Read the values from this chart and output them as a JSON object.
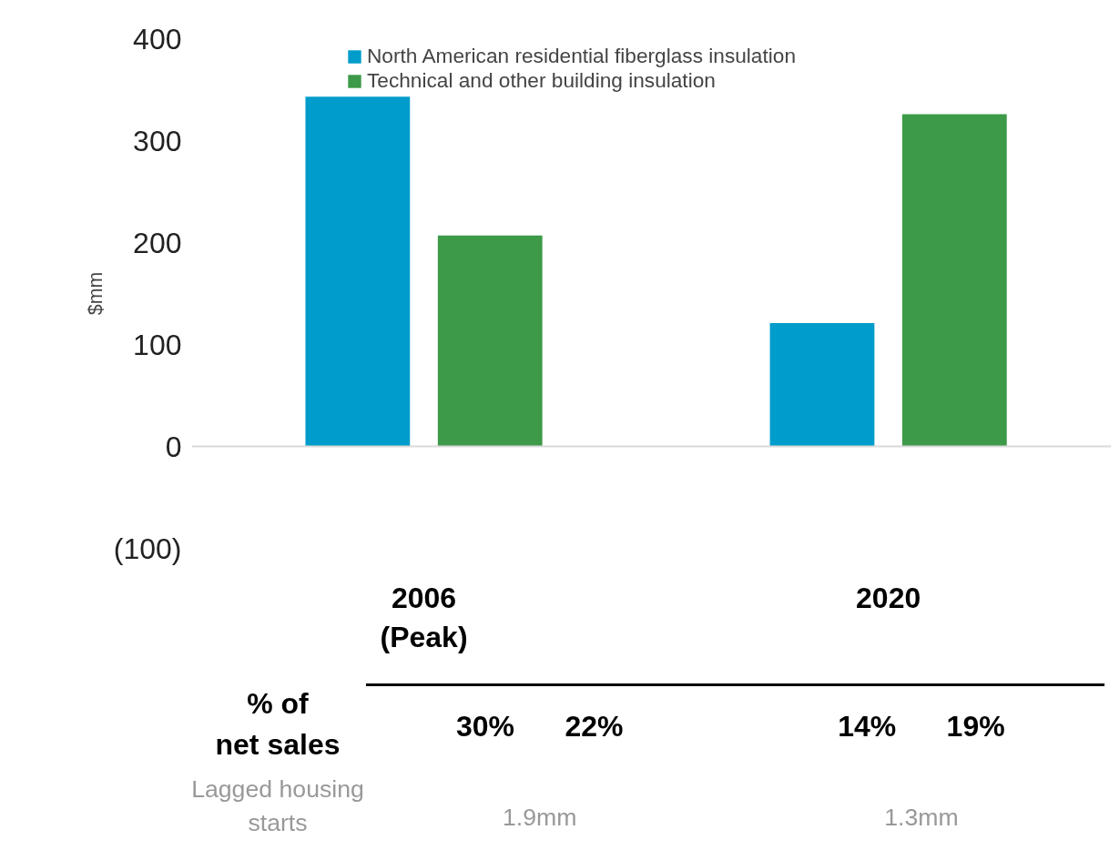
{
  "chart_data": {
    "type": "bar",
    "ylabel": "$mm",
    "categories": [
      "2006\n(Peak)",
      "2020"
    ],
    "series": [
      {
        "name": "North American residential fiberglass insulation",
        "color": "#009ccb",
        "values": [
          343,
          121
        ]
      },
      {
        "name": "Technical and other building insulation",
        "color": "#3c9a48",
        "values": [
          207,
          326
        ]
      }
    ],
    "ylim": [
      -100,
      400
    ],
    "yticks": [
      {
        "value": -100,
        "label": "(100)"
      },
      0,
      100,
      200,
      300,
      400
    ],
    "ref_lines": [
      {
        "axis": "y",
        "value": 0,
        "color": "#d9d9d9"
      }
    ],
    "legend": "top",
    "annotations": [
      "% of\nnet sales",
      "30%",
      "22%",
      "14%",
      "19%",
      "Lagged housing\nstarts",
      "1.9mm",
      "1.3mm"
    ]
  }
}
